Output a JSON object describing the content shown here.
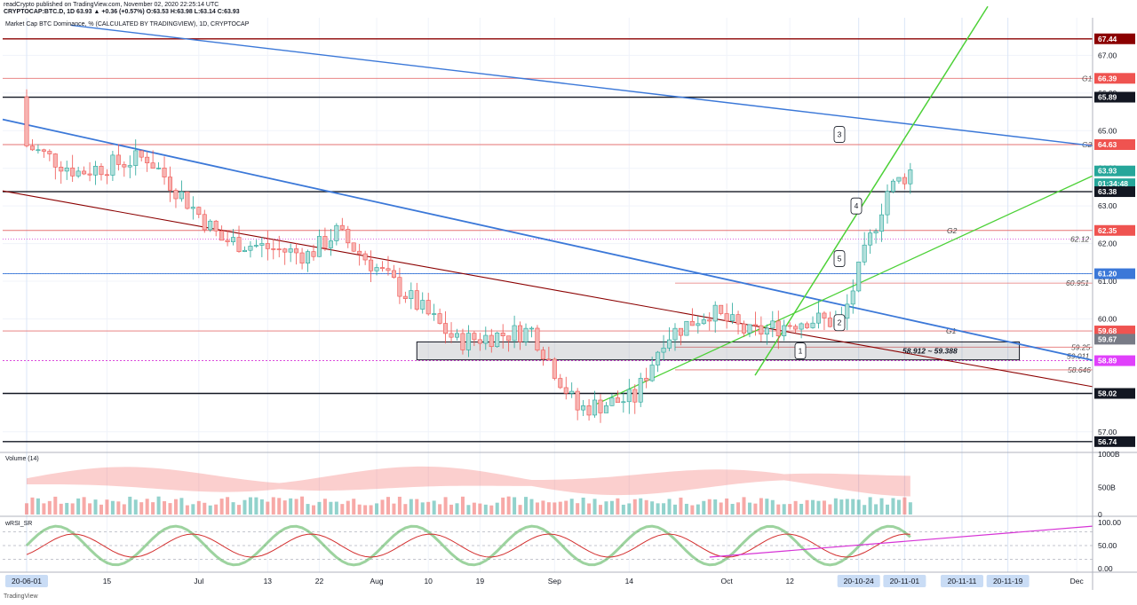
{
  "header": {
    "publish_line": "readCrypto published on TradingView.com, November 02, 2020 22:25:14 UTC",
    "symbol_line": "CRYPTOCAP:BTC.D, 1D 63.93 ▲ +0.36 (+0.57%) O:63.53 H:63.98 L:63.14 C:63.93",
    "series_title": "Market Cap BTC Dominance, % (CALCULATED BY TRADINGVIEW), 1D, CRYPTOCAP"
  },
  "footer": {
    "brand": "TradingView"
  },
  "colors": {
    "up": "#26a69a",
    "down": "#ef5350",
    "up_fill": "#b2dfdb",
    "down_fill": "#f7b4b2",
    "blue_line": "#3b78d8",
    "green_line": "#4cd137",
    "maroon_line": "#8b0000",
    "pink_line": "#d633d6",
    "red_hline": "#e57373",
    "dark_hline": "#131722"
  },
  "chart_data": {
    "type": "candlestick",
    "ylim": [
      56.5,
      68.0
    ],
    "y_ticks": [
      "67.00",
      "66.00",
      "65.00",
      "64.00",
      "63.00",
      "62.00",
      "61.00",
      "60.00",
      "57.00"
    ],
    "x_ticks": [
      {
        "label": "20-06-01",
        "date": "2020-06-01",
        "highlight": true
      },
      {
        "label": "15",
        "date": "2020-06-15"
      },
      {
        "label": "Jul",
        "date": "2020-07-01"
      },
      {
        "label": "13",
        "date": "2020-07-13"
      },
      {
        "label": "22",
        "date": "2020-07-22"
      },
      {
        "label": "Aug",
        "date": "2020-08-01"
      },
      {
        "label": "10",
        "date": "2020-08-10"
      },
      {
        "label": "19",
        "date": "2020-08-19"
      },
      {
        "label": "Sep",
        "date": "2020-09-01"
      },
      {
        "label": "14",
        "date": "2020-09-14"
      },
      {
        "label": "Oct",
        "date": "2020-10-01"
      },
      {
        "label": "12",
        "date": "2020-10-12"
      },
      {
        "label": "20-10-24",
        "date": "2020-10-24",
        "highlight": true
      },
      {
        "label": "20-11-01",
        "date": "2020-11-01",
        "highlight": true
      },
      {
        "label": "20-11-11",
        "date": "2020-11-11",
        "highlight": true
      },
      {
        "label": "20-11-19",
        "date": "2020-11-19",
        "highlight": true
      },
      {
        "label": "Dec",
        "date": "2020-12-01"
      }
    ],
    "price_badges": [
      {
        "value": "67.44",
        "price": 67.44,
        "bg": "#8b0000",
        "line": "#8b0000"
      },
      {
        "value": "66.39",
        "price": 66.39,
        "bg": "#ef5350",
        "line": "#e57373",
        "tag": "G1"
      },
      {
        "value": "65.89",
        "price": 65.89,
        "bg": "#131722",
        "line": "#131722"
      },
      {
        "value": "64.63",
        "price": 64.63,
        "bg": "#ef5350",
        "line": "#e57373",
        "tag": "G2"
      },
      {
        "value": "63.93",
        "price": 63.93,
        "bg": "#26a69a",
        "line": "none"
      },
      {
        "value": "01:34:48",
        "price": 63.59,
        "bg": "#26a69a",
        "line": "none"
      },
      {
        "value": "63.38",
        "price": 63.38,
        "bg": "#131722",
        "line": "#131722"
      },
      {
        "value": "62.35",
        "price": 62.35,
        "bg": "#ef5350",
        "line": "#e57373"
      },
      {
        "value": "61.20",
        "price": 61.2,
        "bg": "#3b78d8",
        "line": "#3b78d8"
      },
      {
        "value": "59.68",
        "price": 59.68,
        "bg": "#ef5350",
        "line": "#e57373"
      },
      {
        "value": "59.67",
        "price": 59.46,
        "bg": "#787b86",
        "line": "none"
      },
      {
        "value": "58.89",
        "price": 58.89,
        "bg": "#e040fb",
        "line": "#d633d6"
      },
      {
        "value": "58.02",
        "price": 58.02,
        "bg": "#131722",
        "line": "#131722"
      },
      {
        "value": "56.74",
        "price": 56.74,
        "bg": "#131722",
        "line": "#131722"
      }
    ],
    "level_labels": [
      {
        "text": "62.12",
        "price": 62.12
      },
      {
        "text": "60.951",
        "price": 60.951
      },
      {
        "text": "59.25",
        "price": 59.25
      },
      {
        "text": "59.011",
        "price": 59.011
      },
      {
        "text": "58.646",
        "price": 58.646
      },
      {
        "text": "G1",
        "price": 59.68
      },
      {
        "text": "G2",
        "price": 62.35
      }
    ],
    "box_label": "58.912 ~ 59.388",
    "callouts": [
      "1",
      "2",
      "3",
      "4",
      "5"
    ],
    "volume_panel": {
      "title": "Volume (14)",
      "y_ticks": [
        "1000B",
        "500B",
        "0"
      ]
    },
    "rsi_panel": {
      "title": "wRSI_SR",
      "y_ticks": [
        "100.00",
        "50.00",
        "0.00"
      ]
    },
    "anchors": [
      {
        "date": "2020-06-01",
        "price": 64.6
      },
      {
        "date": "2020-06-10",
        "price": 63.9
      },
      {
        "date": "2020-06-22",
        "price": 64.3
      },
      {
        "date": "2020-07-05",
        "price": 62.1
      },
      {
        "date": "2020-07-20",
        "price": 61.7
      },
      {
        "date": "2020-07-25",
        "price": 62.3
      },
      {
        "date": "2020-08-05",
        "price": 60.8
      },
      {
        "date": "2020-08-15",
        "price": 59.4
      },
      {
        "date": "2020-08-28",
        "price": 59.7
      },
      {
        "date": "2020-09-05",
        "price": 57.6
      },
      {
        "date": "2020-09-15",
        "price": 57.9
      },
      {
        "date": "2020-09-20",
        "price": 59.5
      },
      {
        "date": "2020-09-28",
        "price": 60.2
      },
      {
        "date": "2020-10-05",
        "price": 59.6
      },
      {
        "date": "2020-10-15",
        "price": 60.0
      },
      {
        "date": "2020-10-21",
        "price": 59.9
      },
      {
        "date": "2020-10-25",
        "price": 61.7
      },
      {
        "date": "2020-10-29",
        "price": 63.4
      },
      {
        "date": "2020-11-02",
        "price": 63.93
      }
    ]
  }
}
